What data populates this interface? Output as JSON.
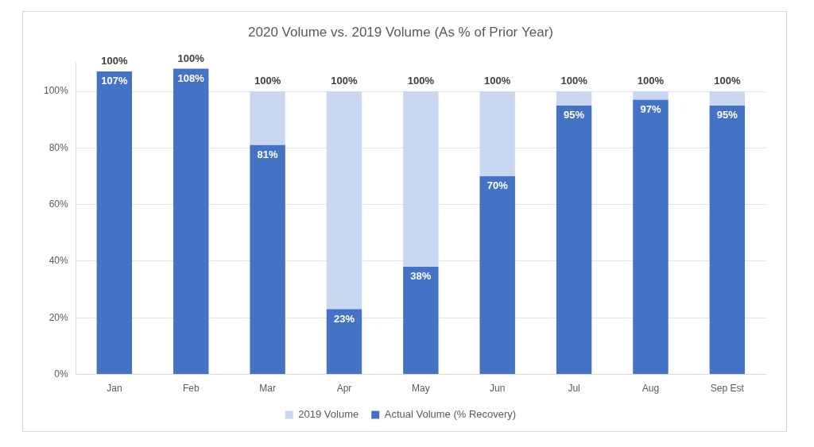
{
  "chart_data": {
    "type": "bar",
    "title": "2020 Volume vs. 2019 Volume (As % of Prior Year)",
    "categories": [
      "Jan",
      "Feb",
      "Mar",
      "Apr",
      "May",
      "Jun",
      "Jul",
      "Aug",
      "Sep Est"
    ],
    "series": [
      {
        "name": "2019 Volume",
        "color": "#c9d6ef",
        "values": [
          100,
          100,
          100,
          100,
          100,
          100,
          100,
          100,
          100
        ],
        "value_labels": [
          "100%",
          "100%",
          "100%",
          "100%",
          "100%",
          "100%",
          "100%",
          "100%",
          "100%"
        ]
      },
      {
        "name": "Actual Volume (% Recovery)",
        "color": "#4472c4",
        "values": [
          107,
          108,
          81,
          23,
          38,
          70,
          95,
          97,
          95
        ],
        "value_labels": [
          "107%",
          "108%",
          "81%",
          "23%",
          "38%",
          "70%",
          "95%",
          "97%",
          "95%"
        ]
      }
    ],
    "ylim": [
      0,
      110
    ],
    "yticks": [
      {
        "value": 0,
        "label": "0%"
      },
      {
        "value": 20,
        "label": "20%"
      },
      {
        "value": 40,
        "label": "40%"
      },
      {
        "value": 60,
        "label": "60%"
      },
      {
        "value": 80,
        "label": "80%"
      },
      {
        "value": 100,
        "label": "100%"
      }
    ],
    "grid": true,
    "legend": "bottom",
    "data_labels": true
  }
}
